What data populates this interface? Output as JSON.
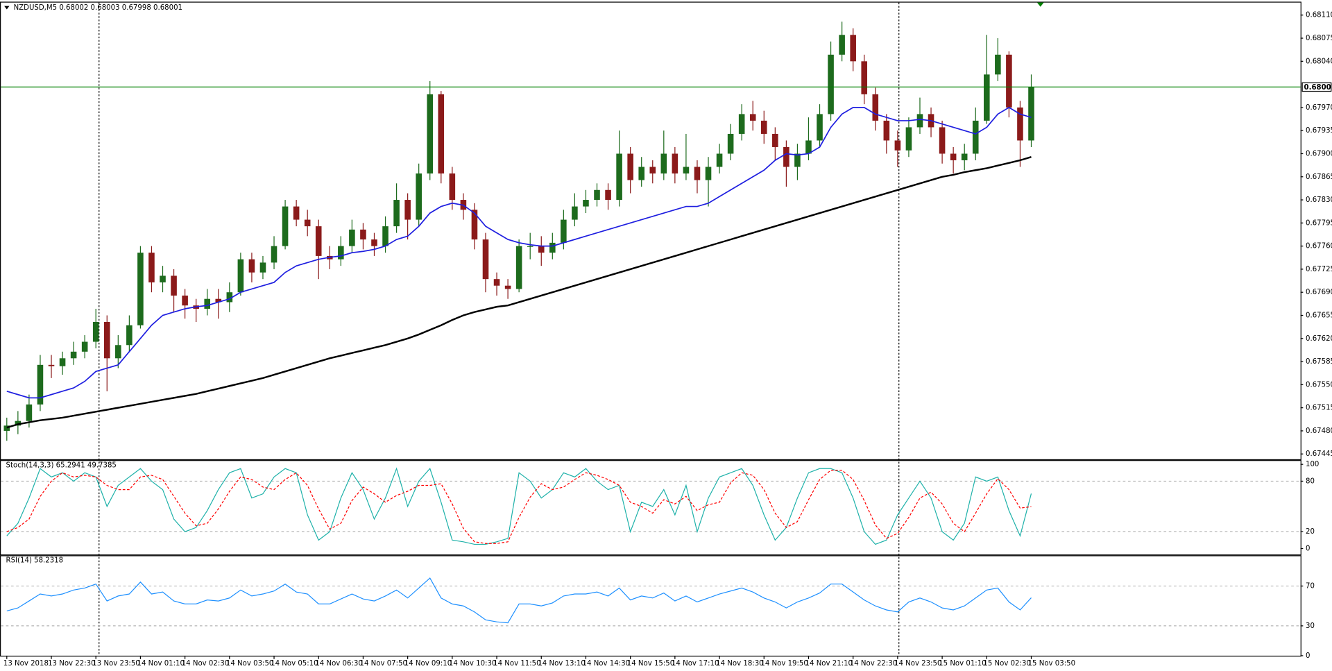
{
  "chart_data": [
    {
      "type": "candlestick",
      "title": "NZDUSD,M5  0.68002 0.68003 0.67998 0.68001",
      "categories": [
        "13 Nov 2018",
        null,
        null,
        null,
        "13 Nov 22:30",
        null,
        null,
        null,
        "13 Nov 23:50",
        null,
        null,
        null,
        "14 Nov 01:10",
        null,
        null,
        null,
        "14 Nov 02:30",
        null,
        null,
        null,
        "14 Nov 03:50",
        null,
        null,
        null,
        "14 Nov 05:10",
        null,
        null,
        null,
        "14 Nov 06:30",
        null,
        null,
        null,
        "14 Nov 07:50",
        null,
        null,
        null,
        "14 Nov 09:10",
        null,
        null,
        null,
        "14 Nov 10:30",
        null,
        null,
        null,
        "14 Nov 11:50",
        null,
        null,
        null,
        "14 Nov 13:10",
        null,
        null,
        null,
        "14 Nov 14:30",
        null,
        null,
        null,
        "14 Nov 15:50",
        null,
        null,
        null,
        "14 Nov 17:10",
        null,
        null,
        null,
        "14 Nov 18:30",
        null,
        null,
        null,
        "14 Nov 19:50",
        null,
        null,
        null,
        "14 Nov 21:10",
        null,
        null,
        null,
        "14 Nov 22:30",
        null,
        null,
        null,
        "14 Nov 23:50",
        null,
        null,
        null,
        "15 Nov 01:10",
        null,
        null,
        null,
        "15 Nov 02:30",
        null,
        null,
        null,
        "15 Nov 03:50"
      ],
      "open": [
        0.6748,
        0.67488,
        0.67495,
        0.6752,
        0.6758,
        0.67578,
        0.6759,
        0.676,
        0.67615,
        0.67645,
        0.6759,
        0.6761,
        0.6764,
        0.6775,
        0.67705,
        0.67715,
        0.67685,
        0.6767,
        0.67665,
        0.6768,
        0.67675,
        0.6769,
        0.6774,
        0.6772,
        0.67735,
        0.6776,
        0.6782,
        0.678,
        0.6779,
        0.67745,
        0.6774,
        0.6776,
        0.67785,
        0.6777,
        0.6776,
        0.6779,
        0.6783,
        0.678,
        0.6787,
        0.6799,
        0.6787,
        0.6783,
        0.67815,
        0.6777,
        0.6771,
        0.677,
        0.67695,
        0.6776,
        0.6776,
        0.6775,
        0.67765,
        0.678,
        0.6782,
        0.6783,
        0.67845,
        0.6783,
        0.679,
        0.6786,
        0.6788,
        0.6787,
        0.679,
        0.6787,
        0.6788,
        0.6786,
        0.6788,
        0.679,
        0.6793,
        0.6796,
        0.6795,
        0.6793,
        0.6791,
        0.6788,
        0.679,
        0.6792,
        0.6796,
        0.6805,
        0.6808,
        0.6804,
        0.6799,
        0.6795,
        0.6792,
        0.67905,
        0.6794,
        0.6796,
        0.6794,
        0.679,
        0.6789,
        0.679,
        0.6795,
        0.6802,
        0.6805,
        0.6797,
        0.6792
      ],
      "high": [
        0.675,
        0.6751,
        0.67535,
        0.67595,
        0.67595,
        0.676,
        0.67615,
        0.67625,
        0.67665,
        0.67655,
        0.67625,
        0.67655,
        0.6776,
        0.6776,
        0.6773,
        0.67725,
        0.67695,
        0.6768,
        0.67695,
        0.67695,
        0.67705,
        0.6775,
        0.6775,
        0.67745,
        0.67775,
        0.6783,
        0.6783,
        0.67815,
        0.678,
        0.6776,
        0.67775,
        0.678,
        0.67795,
        0.6778,
        0.67805,
        0.67855,
        0.6784,
        0.67885,
        0.6801,
        0.67995,
        0.6788,
        0.6784,
        0.67825,
        0.6778,
        0.6772,
        0.6771,
        0.6777,
        0.6778,
        0.67775,
        0.6778,
        0.67815,
        0.6784,
        0.67845,
        0.67855,
        0.67855,
        0.67935,
        0.6791,
        0.67895,
        0.6789,
        0.67935,
        0.6791,
        0.6793,
        0.6789,
        0.67895,
        0.67915,
        0.67945,
        0.67975,
        0.6798,
        0.67965,
        0.6794,
        0.6792,
        0.67915,
        0.67955,
        0.67975,
        0.6807,
        0.681,
        0.6809,
        0.6805,
        0.68,
        0.6796,
        0.67935,
        0.67955,
        0.67985,
        0.6797,
        0.6795,
        0.6791,
        0.67915,
        0.6797,
        0.6808,
        0.68075,
        0.68055,
        0.6798,
        0.6802
      ],
      "low": [
        0.67465,
        0.67475,
        0.67485,
        0.6751,
        0.6756,
        0.67565,
        0.6758,
        0.6759,
        0.67605,
        0.6754,
        0.67575,
        0.676,
        0.67635,
        0.6769,
        0.6769,
        0.6766,
        0.6765,
        0.67645,
        0.67655,
        0.6765,
        0.6766,
        0.67685,
        0.67705,
        0.6771,
        0.67725,
        0.67755,
        0.6779,
        0.67775,
        0.6771,
        0.67725,
        0.6773,
        0.6775,
        0.67755,
        0.67745,
        0.6775,
        0.6778,
        0.6777,
        0.6779,
        0.6786,
        0.67855,
        0.67815,
        0.678,
        0.67755,
        0.6769,
        0.67685,
        0.6768,
        0.6769,
        0.6774,
        0.6773,
        0.6774,
        0.67755,
        0.6779,
        0.6781,
        0.6782,
        0.67815,
        0.6782,
        0.6784,
        0.6785,
        0.67855,
        0.6786,
        0.67855,
        0.6786,
        0.6784,
        0.6782,
        0.6787,
        0.6789,
        0.6792,
        0.67935,
        0.67915,
        0.6789,
        0.6785,
        0.6786,
        0.6789,
        0.6791,
        0.6795,
        0.6804,
        0.68025,
        0.67975,
        0.67935,
        0.679,
        0.6788,
        0.67895,
        0.6793,
        0.67925,
        0.67885,
        0.6787,
        0.67875,
        0.6789,
        0.67945,
        0.6801,
        0.67955,
        0.6788,
        0.6791
      ],
      "close": [
        0.67488,
        0.67495,
        0.6752,
        0.6758,
        0.67578,
        0.6759,
        0.676,
        0.67615,
        0.67645,
        0.6759,
        0.6761,
        0.6764,
        0.6775,
        0.67705,
        0.67715,
        0.67685,
        0.6767,
        0.67665,
        0.6768,
        0.67675,
        0.6769,
        0.6774,
        0.6772,
        0.67735,
        0.6776,
        0.6782,
        0.678,
        0.6779,
        0.67745,
        0.6774,
        0.6776,
        0.67785,
        0.6777,
        0.6776,
        0.6779,
        0.6783,
        0.678,
        0.6787,
        0.6799,
        0.6787,
        0.6783,
        0.67815,
        0.6777,
        0.6771,
        0.677,
        0.67695,
        0.6776,
        0.6776,
        0.6775,
        0.67765,
        0.678,
        0.6782,
        0.6783,
        0.67845,
        0.6783,
        0.679,
        0.6786,
        0.6788,
        0.6787,
        0.679,
        0.6787,
        0.6788,
        0.6786,
        0.6788,
        0.679,
        0.6793,
        0.6796,
        0.6795,
        0.6793,
        0.6791,
        0.6788,
        0.679,
        0.6792,
        0.6796,
        0.6805,
        0.6808,
        0.6804,
        0.6799,
        0.6795,
        0.6792,
        0.67905,
        0.6794,
        0.6796,
        0.6794,
        0.679,
        0.6789,
        0.679,
        0.6795,
        0.6802,
        0.6805,
        0.6797,
        0.6792,
        0.68001
      ],
      "up_color": "#1d6b1d",
      "down_color": "#8b1a1a",
      "overlays": [
        {
          "color": "#1f1fe0",
          "values": [
            0.6754,
            0.67535,
            0.6753,
            0.6753,
            0.67535,
            0.6754,
            0.67545,
            0.67555,
            0.6757,
            0.67575,
            0.6758,
            0.676,
            0.6762,
            0.6764,
            0.67655,
            0.6766,
            0.67665,
            0.67668,
            0.6767,
            0.67675,
            0.6768,
            0.6769,
            0.67695,
            0.677,
            0.67705,
            0.6772,
            0.6773,
            0.67735,
            0.6774,
            0.67743,
            0.67745,
            0.6775,
            0.67752,
            0.67755,
            0.6776,
            0.6777,
            0.67775,
            0.6779,
            0.6781,
            0.6782,
            0.67825,
            0.67822,
            0.6781,
            0.6779,
            0.6778,
            0.6777,
            0.67765,
            0.67762,
            0.6776,
            0.6776,
            0.67765,
            0.6777,
            0.67775,
            0.6778,
            0.67785,
            0.6779,
            0.67795,
            0.678,
            0.67805,
            0.6781,
            0.67815,
            0.6782,
            0.6782,
            0.67825,
            0.67835,
            0.67845,
            0.67855,
            0.67865,
            0.67875,
            0.6789,
            0.679,
            0.67898,
            0.679,
            0.6791,
            0.6794,
            0.6796,
            0.6797,
            0.6797,
            0.6796,
            0.67955,
            0.6795,
            0.6795,
            0.67952,
            0.6795,
            0.67945,
            0.6794,
            0.67935,
            0.6793,
            0.6794,
            0.6796,
            0.6797,
            0.6796,
            0.67955
          ]
        },
        {
          "color": "#000000",
          "values": [
            0.67485,
            0.6749,
            0.67493,
            0.67496,
            0.67498,
            0.675,
            0.67503,
            0.67506,
            0.67509,
            0.67512,
            0.67515,
            0.67518,
            0.67521,
            0.67524,
            0.67527,
            0.6753,
            0.67533,
            0.67536,
            0.6754,
            0.67544,
            0.67548,
            0.67552,
            0.67556,
            0.6756,
            0.67565,
            0.6757,
            0.67575,
            0.6758,
            0.67585,
            0.6759,
            0.67594,
            0.67598,
            0.67602,
            0.67606,
            0.6761,
            0.67615,
            0.6762,
            0.67626,
            0.67633,
            0.6764,
            0.67648,
            0.67655,
            0.6766,
            0.67664,
            0.67668,
            0.6767,
            0.67675,
            0.6768,
            0.67685,
            0.6769,
            0.67695,
            0.677,
            0.67705,
            0.6771,
            0.67715,
            0.6772,
            0.67725,
            0.6773,
            0.67735,
            0.6774,
            0.67745,
            0.6775,
            0.67755,
            0.6776,
            0.67765,
            0.6777,
            0.67775,
            0.6778,
            0.67785,
            0.6779,
            0.67795,
            0.678,
            0.67805,
            0.6781,
            0.67815,
            0.6782,
            0.67825,
            0.6783,
            0.67835,
            0.6784,
            0.67845,
            0.6785,
            0.67855,
            0.6786,
            0.67865,
            0.67868,
            0.67872,
            0.67875,
            0.67878,
            0.67882,
            0.67886,
            0.6789,
            0.67895
          ]
        }
      ],
      "last_price": 0.68001,
      "last_price_color": "#008000",
      "ylim": [
        0.67437,
        0.68129
      ],
      "yticks": [
        {
          "value": 0.6811,
          "label": "0.68110"
        },
        0.68075,
        {
          "value": 0.6804,
          "label": "0.68040"
        },
        {
          "value": 0.6797,
          "label": "0.67970"
        },
        0.67935,
        {
          "value": 0.679,
          "label": "0.67900"
        },
        0.67865,
        {
          "value": 0.6783,
          "label": "0.67830"
        },
        0.67795,
        {
          "value": 0.6776,
          "label": "0.67760"
        },
        0.67725,
        {
          "value": 0.6769,
          "label": "0.67690"
        },
        0.67655,
        {
          "value": 0.6762,
          "label": "0.67620"
        },
        0.67585,
        {
          "value": 0.6755,
          "label": "0.67550"
        },
        0.67515,
        {
          "value": 0.6748,
          "label": "0.67480"
        },
        0.67445
      ]
    },
    {
      "type": "line",
      "title": "Stoch(14,3,3) 65.2941 49.7385",
      "series": [
        {
          "color": "#20b2aa",
          "values": [
            15,
            30,
            60,
            95,
            85,
            90,
            80,
            90,
            85,
            50,
            75,
            85,
            95,
            80,
            70,
            35,
            20,
            25,
            45,
            70,
            90,
            95,
            60,
            65,
            85,
            95,
            90,
            40,
            10,
            20,
            60,
            90,
            70,
            35,
            60,
            95,
            50,
            80,
            95,
            55,
            10,
            8,
            5,
            5,
            8,
            12,
            90,
            80,
            60,
            70,
            90,
            85,
            95,
            80,
            70,
            75,
            20,
            55,
            50,
            70,
            40,
            75,
            20,
            60,
            85,
            90,
            95,
            75,
            40,
            10,
            25,
            60,
            90,
            95,
            95,
            90,
            60,
            20,
            5,
            10,
            40,
            60,
            80,
            60,
            20,
            10,
            30,
            85,
            80,
            85,
            45,
            15,
            65.2941
          ]
        },
        {
          "color": "#ff0000",
          "dashed": true,
          "values": [
            20,
            25,
            35,
            62,
            80,
            90,
            85,
            87,
            85,
            75,
            70,
            70,
            85,
            87,
            82,
            62,
            42,
            27,
            30,
            47,
            68,
            85,
            82,
            73,
            70,
            82,
            90,
            75,
            47,
            23,
            30,
            57,
            73,
            65,
            55,
            63,
            68,
            75,
            75,
            77,
            53,
            24,
            8,
            6,
            6,
            8,
            37,
            61,
            77,
            70,
            73,
            82,
            90,
            87,
            82,
            75,
            55,
            50,
            42,
            58,
            53,
            62,
            45,
            52,
            55,
            78,
            90,
            87,
            70,
            42,
            25,
            32,
            58,
            82,
            93,
            93,
            82,
            57,
            28,
            12,
            18,
            37,
            60,
            67,
            53,
            30,
            20,
            42,
            65,
            83,
            70,
            48,
            49.7385
          ]
        }
      ],
      "dashed_grid": true,
      "ylim": [
        0,
        100
      ],
      "yticks": [
        100,
        80,
        20,
        0
      ]
    },
    {
      "type": "line",
      "title": "RSI(14) 58.2318",
      "series": [
        {
          "color": "#1e90ff",
          "values": [
            45,
            48,
            55,
            62,
            60,
            62,
            66,
            68,
            72,
            55,
            60,
            62,
            74,
            62,
            64,
            55,
            52,
            52,
            56,
            55,
            58,
            66,
            60,
            62,
            65,
            72,
            64,
            62,
            52,
            52,
            57,
            62,
            57,
            55,
            60,
            66,
            58,
            68,
            78,
            58,
            52,
            50,
            44,
            36,
            34,
            33,
            52,
            52,
            50,
            53,
            60,
            62,
            62,
            64,
            60,
            68,
            56,
            60,
            58,
            63,
            55,
            60,
            54,
            58,
            62,
            65,
            68,
            64,
            58,
            54,
            48,
            54,
            58,
            63,
            72,
            72,
            64,
            56,
            50,
            46,
            44,
            54,
            58,
            54,
            48,
            46,
            50,
            58,
            66,
            68,
            54,
            46,
            58.2318
          ]
        }
      ],
      "dashed_grid": true,
      "ylim": [
        0,
        100
      ],
      "yticks": [
        70,
        30,
        0
      ]
    }
  ]
}
